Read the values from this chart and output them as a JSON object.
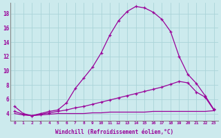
{
  "xlabel": "Windchill (Refroidissement éolien,°C)",
  "x_ticks": [
    0,
    1,
    2,
    3,
    4,
    5,
    6,
    7,
    8,
    9,
    10,
    11,
    12,
    13,
    14,
    15,
    16,
    17,
    18,
    19,
    20,
    21,
    22,
    23
  ],
  "y_ticks": [
    4,
    6,
    8,
    10,
    12,
    14,
    16,
    18
  ],
  "ylim": [
    3.0,
    19.5
  ],
  "xlim": [
    -0.5,
    23.5
  ],
  "background_color": "#cceaed",
  "line_color": "#990099",
  "grid_color": "#aad4d8",
  "line1_x": [
    0,
    1,
    2,
    3,
    4,
    5,
    6,
    7,
    8,
    9,
    10,
    11,
    12,
    13,
    14,
    15,
    16,
    17,
    18,
    19,
    20,
    21,
    22,
    23
  ],
  "line1_y": [
    5.0,
    4.0,
    3.7,
    4.0,
    4.3,
    4.5,
    5.5,
    7.5,
    9.0,
    10.5,
    12.5,
    15.0,
    17.0,
    18.3,
    19.0,
    18.8,
    18.2,
    17.2,
    15.5,
    12.0,
    9.5,
    8.2,
    6.5,
    4.6
  ],
  "line2_x": [
    0,
    1,
    2,
    3,
    4,
    5,
    6,
    7,
    8,
    9,
    10,
    11,
    12,
    13,
    14,
    15,
    16,
    17,
    18,
    19,
    20,
    21,
    22,
    23
  ],
  "line2_y": [
    4.3,
    3.9,
    3.7,
    3.9,
    4.1,
    4.3,
    4.5,
    4.8,
    5.0,
    5.3,
    5.6,
    5.9,
    6.2,
    6.5,
    6.8,
    7.1,
    7.4,
    7.7,
    8.1,
    8.5,
    8.3,
    7.0,
    6.3,
    4.5
  ],
  "line3_x": [
    0,
    1,
    2,
    3,
    4,
    5,
    6,
    7,
    8,
    9,
    10,
    11,
    12,
    13,
    14,
    15,
    16,
    17,
    18,
    19,
    20,
    21,
    22,
    23
  ],
  "line3_y": [
    4.0,
    3.8,
    3.7,
    3.8,
    3.9,
    4.0,
    4.0,
    4.0,
    4.0,
    4.1,
    4.1,
    4.2,
    4.2,
    4.2,
    4.2,
    4.2,
    4.3,
    4.3,
    4.3,
    4.3,
    4.3,
    4.3,
    4.3,
    4.4
  ]
}
